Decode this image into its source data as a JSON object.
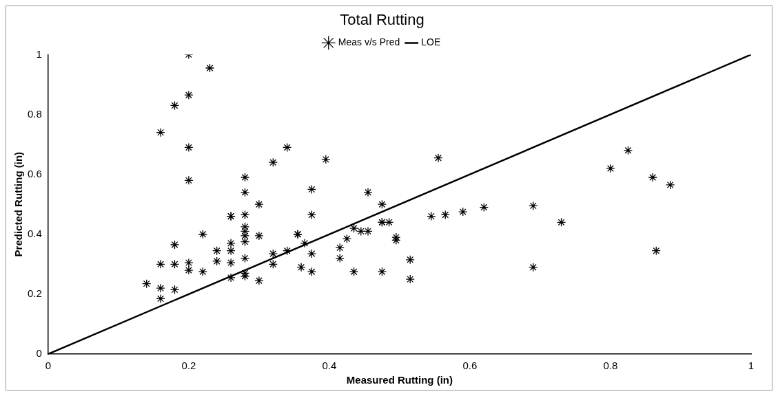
{
  "chart_data": {
    "type": "scatter",
    "title": "Total Rutting",
    "xlabel": "Measured Rutting (in)",
    "ylabel": "Predicted Rutting (in)",
    "xlim": [
      0,
      1
    ],
    "ylim": [
      0,
      1
    ],
    "xticks": [
      0,
      0.2,
      0.4,
      0.6,
      0.8,
      1
    ],
    "yticks": [
      0,
      0.2,
      0.4,
      0.6,
      0.8,
      1
    ],
    "grid": false,
    "legend": "top",
    "marker": "cross",
    "series": [
      {
        "name": "Meas v/s Pred",
        "color": "#000000",
        "x": [
          0.14,
          0.16,
          0.16,
          0.16,
          0.16,
          0.18,
          0.18,
          0.18,
          0.18,
          0.2,
          0.2,
          0.2,
          0.2,
          0.2,
          0.2,
          0.22,
          0.22,
          0.23,
          0.24,
          0.24,
          0.26,
          0.26,
          0.26,
          0.26,
          0.26,
          0.26,
          0.28,
          0.28,
          0.28,
          0.28,
          0.28,
          0.28,
          0.28,
          0.28,
          0.28,
          0.28,
          0.3,
          0.3,
          0.3,
          0.32,
          0.32,
          0.32,
          0.34,
          0.34,
          0.355,
          0.355,
          0.36,
          0.365,
          0.375,
          0.375,
          0.375,
          0.375,
          0.395,
          0.415,
          0.415,
          0.425,
          0.435,
          0.435,
          0.445,
          0.455,
          0.455,
          0.475,
          0.475,
          0.475,
          0.485,
          0.475,
          0.495,
          0.495,
          0.515,
          0.515,
          0.545,
          0.555,
          0.565,
          0.59,
          0.62,
          0.69,
          0.69,
          0.73,
          0.8,
          0.825,
          0.86,
          0.865,
          0.885
        ],
        "values": [
          0.235,
          0.74,
          0.3,
          0.22,
          0.185,
          0.83,
          0.365,
          0.3,
          0.215,
          1.0,
          0.865,
          0.69,
          0.58,
          0.305,
          0.28,
          0.4,
          0.275,
          0.955,
          0.345,
          0.31,
          0.46,
          0.46,
          0.37,
          0.345,
          0.305,
          0.255,
          0.59,
          0.54,
          0.465,
          0.425,
          0.41,
          0.395,
          0.375,
          0.32,
          0.27,
          0.26,
          0.5,
          0.395,
          0.245,
          0.64,
          0.335,
          0.3,
          0.69,
          0.345,
          0.4,
          0.4,
          0.29,
          0.37,
          0.55,
          0.465,
          0.335,
          0.275,
          0.65,
          0.355,
          0.32,
          0.385,
          0.42,
          0.275,
          0.41,
          0.54,
          0.41,
          0.5,
          0.44,
          0.44,
          0.44,
          0.275,
          0.39,
          0.38,
          0.315,
          0.25,
          0.46,
          0.655,
          0.465,
          0.475,
          0.49,
          0.495,
          0.29,
          0.44,
          0.62,
          0.68,
          0.59,
          0.345,
          0.565
        ]
      },
      {
        "name": "LOE",
        "type": "line",
        "color": "#000000",
        "marker": "none",
        "x": [
          0,
          1
        ],
        "values": [
          0,
          1
        ]
      }
    ]
  }
}
